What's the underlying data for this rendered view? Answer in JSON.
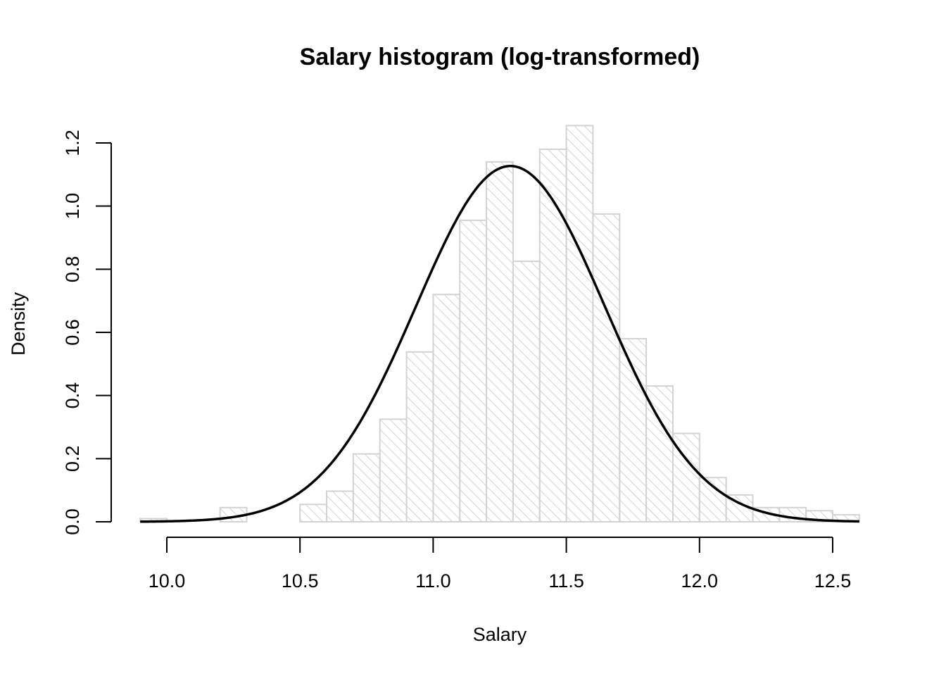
{
  "chart_data": {
    "type": "bar",
    "title": "Salary histogram (log-transformed)",
    "xlabel": "Salary",
    "ylabel": "Density",
    "bin_width": 0.1,
    "bin_starts": [
      9.9,
      10.0,
      10.1,
      10.2,
      10.3,
      10.4,
      10.5,
      10.6,
      10.7,
      10.8,
      10.9,
      11.0,
      11.1,
      11.2,
      11.3,
      11.4,
      11.5,
      11.6,
      11.7,
      11.8,
      11.9,
      12.0,
      12.1,
      12.2,
      12.3,
      12.4,
      12.5
    ],
    "values": [
      0.01,
      0.0,
      0.0,
      0.045,
      0.0,
      0.0,
      0.055,
      0.097,
      0.215,
      0.325,
      0.538,
      0.72,
      0.955,
      1.14,
      0.825,
      1.18,
      1.255,
      0.975,
      0.58,
      0.43,
      0.28,
      0.14,
      0.085,
      0.045,
      0.045,
      0.035,
      0.022
    ],
    "density_curve": {
      "type": "normal",
      "mean": 11.29,
      "sd": 0.354,
      "x_range": [
        9.9,
        12.6
      ]
    },
    "xlim": [
      9.9,
      12.6
    ],
    "ylim": [
      0,
      1.25
    ],
    "x_ticks": [
      "10.0",
      "10.5",
      "11.0",
      "11.5",
      "12.0",
      "12.5"
    ],
    "y_ticks": [
      "0.0",
      "0.2",
      "0.4",
      "0.6",
      "0.8",
      "1.0",
      "1.2"
    ],
    "bar_fill": "hatched",
    "bar_color": "#d3d3d3",
    "curve_color": "#000000",
    "grid": false
  }
}
